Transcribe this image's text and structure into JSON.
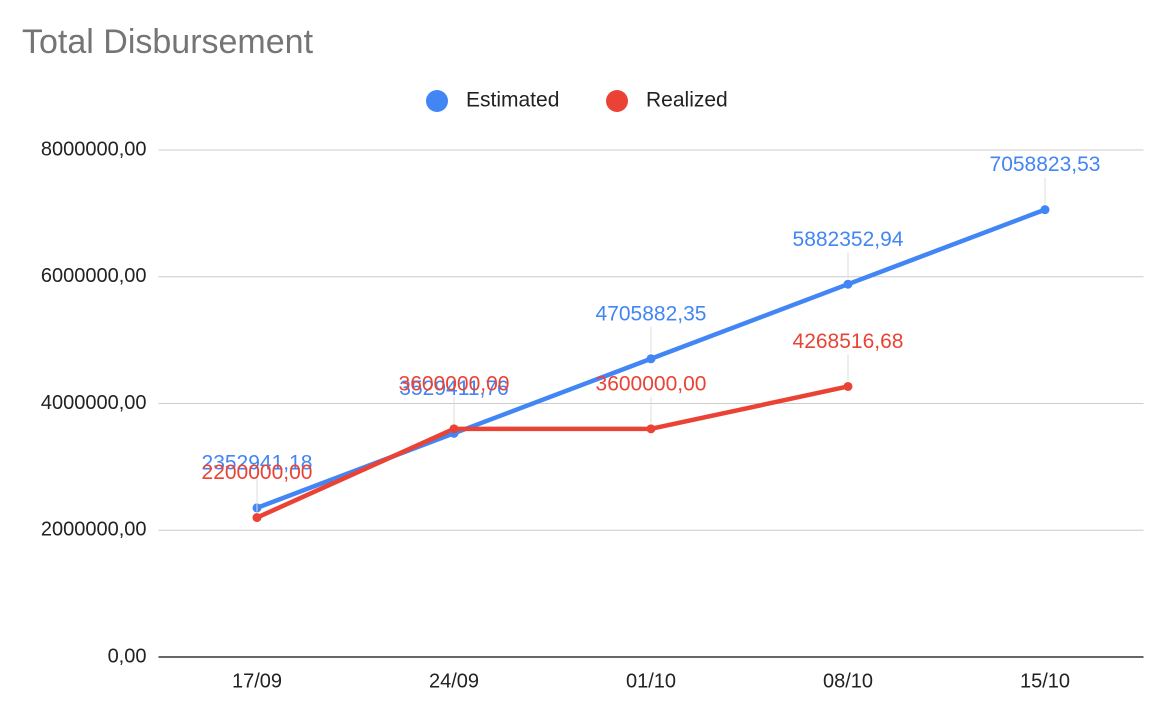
{
  "chart_data": {
    "type": "line",
    "title": "Total Disbursement",
    "categories": [
      "17/09",
      "24/09",
      "01/10",
      "08/10",
      "15/10"
    ],
    "series": [
      {
        "name": "Estimated",
        "color": "#4285f4",
        "values": [
          2352941.18,
          3529411.76,
          4705882.35,
          5882352.94,
          7058823.53
        ],
        "value_labels": [
          "2352941,18",
          "3529411,76",
          "4705882,35",
          "5882352,94",
          "7058823,53"
        ]
      },
      {
        "name": "Realized",
        "color": "#ea4335",
        "values": [
          2200000,
          3600000,
          3600000,
          4268516.68,
          null
        ],
        "value_labels": [
          "2200000,00",
          "3600000,00",
          "3600000,00",
          "4268516,68",
          null
        ]
      }
    ],
    "ylim": [
      0,
      8000000
    ],
    "yticks": [
      {
        "value": 0,
        "label": "0,00"
      },
      {
        "value": 2000000,
        "label": "2000000,00"
      },
      {
        "value": 4000000,
        "label": "4000000,00"
      },
      {
        "value": 6000000,
        "label": "6000000,00"
      },
      {
        "value": 8000000,
        "label": "8000000,00"
      }
    ],
    "grid": true,
    "legend": "top"
  }
}
